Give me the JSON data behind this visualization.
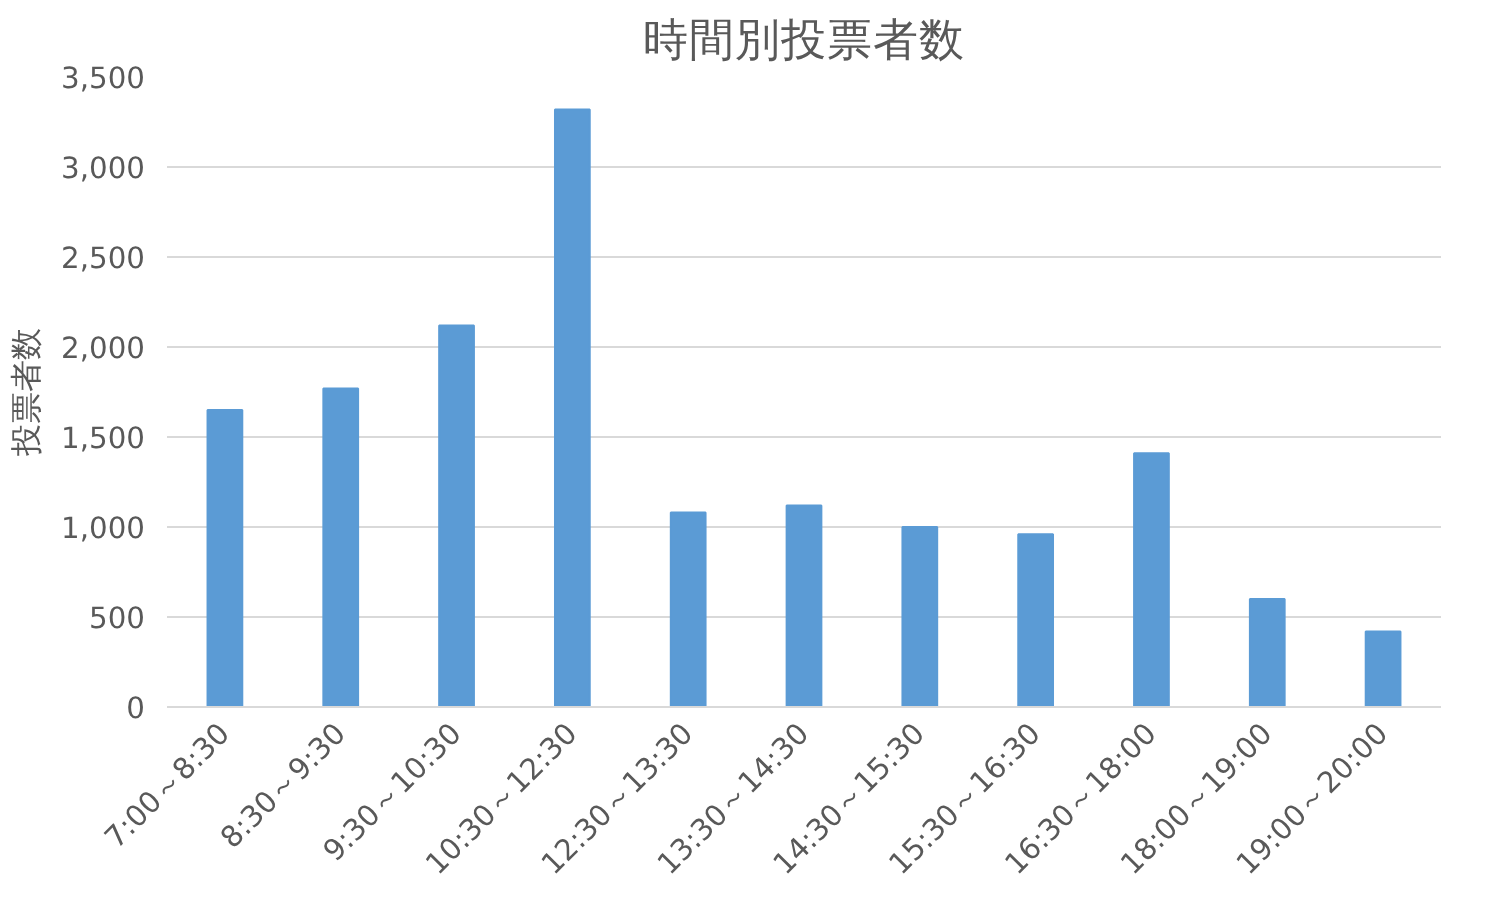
{
  "chart_data": {
    "type": "bar",
    "title": "時間別投票者数",
    "ylabel": "投票者数",
    "categories": [
      "7:00～8:30",
      "8:30～9:30",
      "9:30～10:30",
      "10:30～12:30",
      "12:30～13:30",
      "13:30～14:30",
      "14:30～15:30",
      "15:30～16:30",
      "16:30～18:00",
      "18:00～19:00",
      "19:00～20:00"
    ],
    "values": [
      1650,
      1770,
      2120,
      3320,
      1080,
      1120,
      1000,
      960,
      1410,
      600,
      420
    ],
    "color": "#5b9bd5",
    "ylim": [
      0,
      3500
    ],
    "yticks": [
      0,
      {
        "value": 500,
        "label": "500"
      },
      {
        "value": 1000,
        "label": "1,000"
      },
      {
        "value": 1500,
        "label": "1,500"
      },
      {
        "value": 2000,
        "label": "2,000"
      },
      {
        "value": 2500,
        "label": "2,500"
      },
      {
        "value": 3000,
        "label": "3,000"
      },
      {
        "value": 3500,
        "label": "3,500"
      }
    ],
    "grid": "y"
  }
}
